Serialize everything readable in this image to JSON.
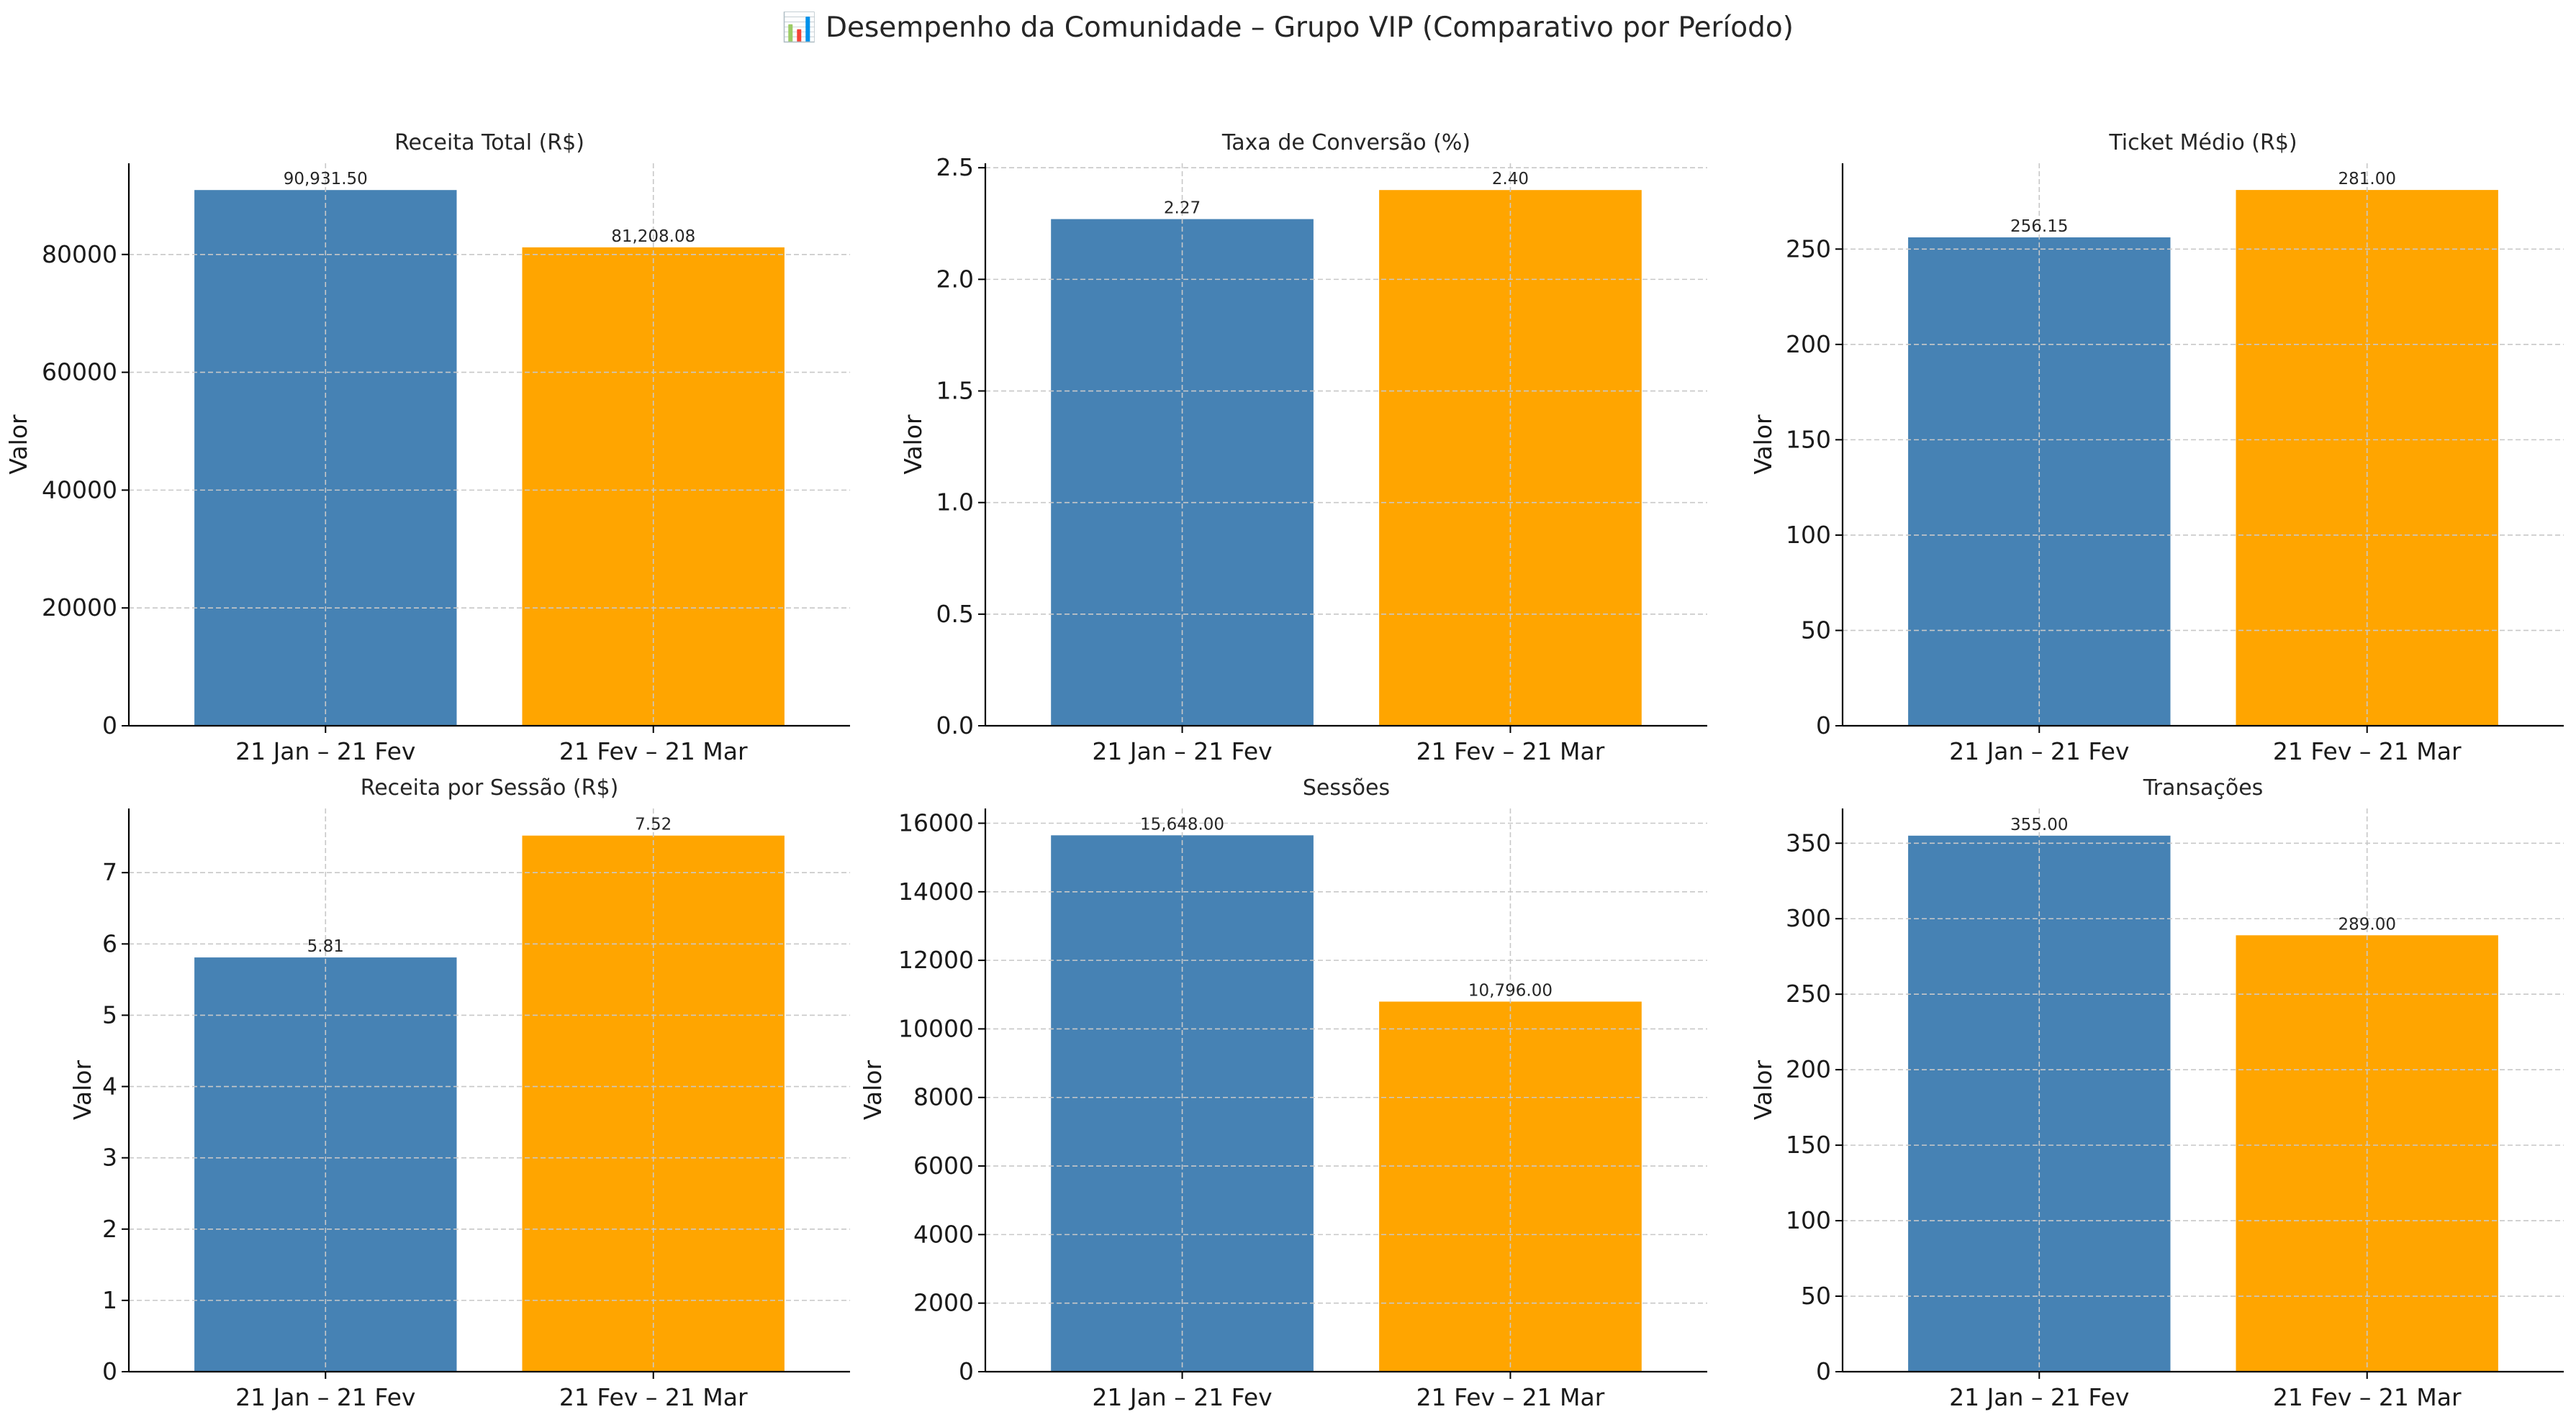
{
  "figure": {
    "suptitle": "📊 Desempenho da Comunidade – Grupo VIP (Comparativo por Período)",
    "colors": {
      "period_1": "#4682b4",
      "period_2": "#ffa500"
    }
  },
  "chart_data": [
    {
      "type": "bar",
      "title": "Receita Total (R$)",
      "xlabel": "",
      "ylabel": "Valor",
      "categories": [
        "21 Jan – 21 Fev",
        "21 Fev – 21 Mar"
      ],
      "values": [
        90931.5,
        81208.08
      ],
      "data_labels": [
        "90,931.50",
        "81,208.08"
      ],
      "ylim": [
        0,
        95478
      ],
      "yticks": [
        0,
        20000,
        40000,
        60000,
        80000
      ],
      "ytick_labels": [
        "0",
        "20000",
        "40000",
        "60000",
        "80000"
      ],
      "grid": true
    },
    {
      "type": "bar",
      "title": "Taxa de Conversão (%)",
      "xlabel": "",
      "ylabel": "Valor",
      "categories": [
        "21 Jan – 21 Fev",
        "21 Fev – 21 Mar"
      ],
      "values": [
        2.27,
        2.4
      ],
      "data_labels": [
        "2.27",
        "2.40"
      ],
      "ylim": [
        0,
        2.52
      ],
      "yticks": [
        0,
        0.5,
        1.0,
        1.5,
        2.0,
        2.5
      ],
      "ytick_labels": [
        "0.0",
        "0.5",
        "1.0",
        "1.5",
        "2.0",
        "2.5"
      ],
      "grid": true
    },
    {
      "type": "bar",
      "title": "Ticket Médio (R$)",
      "xlabel": "",
      "ylabel": "Valor",
      "categories": [
        "21 Jan – 21 Fev",
        "21 Fev – 21 Mar"
      ],
      "values": [
        256.15,
        281.0
      ],
      "data_labels": [
        "256.15",
        "281.00"
      ],
      "ylim": [
        0,
        295
      ],
      "yticks": [
        0,
        50,
        100,
        150,
        200,
        250
      ],
      "ytick_labels": [
        "0",
        "50",
        "100",
        "150",
        "200",
        "250"
      ],
      "grid": true
    },
    {
      "type": "bar",
      "title": "Receita por Sessão (R$)",
      "xlabel": "",
      "ylabel": "Valor",
      "categories": [
        "21 Jan – 21 Fev",
        "21 Fev – 21 Mar"
      ],
      "values": [
        5.81,
        7.52
      ],
      "data_labels": [
        "5.81",
        "7.52"
      ],
      "ylim": [
        0,
        7.9
      ],
      "yticks": [
        0,
        1,
        2,
        3,
        4,
        5,
        6,
        7
      ],
      "ytick_labels": [
        "0",
        "1",
        "2",
        "3",
        "4",
        "5",
        "6",
        "7"
      ],
      "grid": true
    },
    {
      "type": "bar",
      "title": "Sessões",
      "xlabel": "",
      "ylabel": "Valor",
      "categories": [
        "21 Jan – 21 Fev",
        "21 Fev – 21 Mar"
      ],
      "values": [
        15648.0,
        10796.0
      ],
      "data_labels": [
        "15,648.00",
        "10,796.00"
      ],
      "ylim": [
        0,
        16430
      ],
      "yticks": [
        0,
        2000,
        4000,
        6000,
        8000,
        10000,
        12000,
        14000,
        16000
      ],
      "ytick_labels": [
        "0",
        "2000",
        "4000",
        "6000",
        "8000",
        "10000",
        "12000",
        "14000",
        "16000"
      ],
      "grid": true
    },
    {
      "type": "bar",
      "title": "Transações",
      "xlabel": "",
      "ylabel": "Valor",
      "categories": [
        "21 Jan – 21 Fev",
        "21 Fev – 21 Mar"
      ],
      "values": [
        355.0,
        289.0
      ],
      "data_labels": [
        "355.00",
        "289.00"
      ],
      "ylim": [
        0,
        373
      ],
      "yticks": [
        0,
        50,
        100,
        150,
        200,
        250,
        300,
        350
      ],
      "ytick_labels": [
        "0",
        "50",
        "100",
        "150",
        "200",
        "250",
        "300",
        "350"
      ],
      "grid": true
    }
  ]
}
